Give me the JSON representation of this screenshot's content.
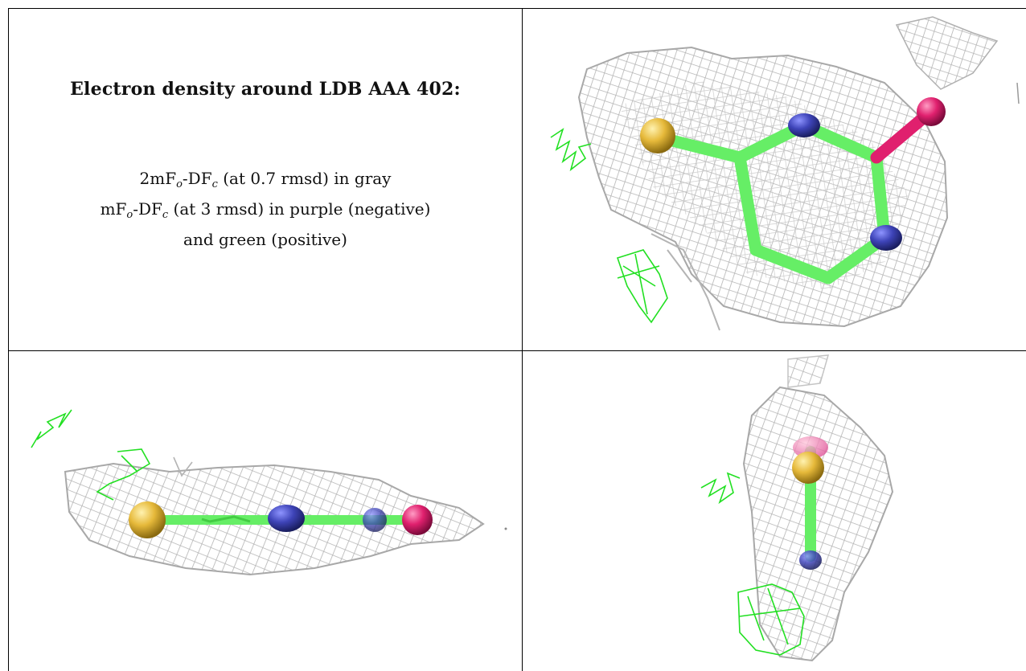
{
  "title": "Electron density around LDB AAA 402:",
  "legend": {
    "line1": {
      "prefix": "2mF",
      "sub1": "o",
      "mid": "-DF",
      "sub2": "c",
      "suffix": " (at 0.7 rmsd) in gray"
    },
    "line2": {
      "prefix": "mF",
      "sub1": "o",
      "mid": "-DF",
      "sub2": "c",
      "suffix": " (at 3 rmsd) in purple (negative)"
    },
    "line3": "and green (positive)"
  },
  "colors": {
    "mesh_gray": "#b4b4b4",
    "mesh_green": "#22e022",
    "bond_green": "#66ee66",
    "atom_sulfur": "#e6b93a",
    "atom_nitrogen": "#3e44b8",
    "atom_oxygen": "#e0206e"
  },
  "panels": [
    {
      "view": "top"
    },
    {
      "view": "side"
    },
    {
      "view": "end"
    }
  ]
}
